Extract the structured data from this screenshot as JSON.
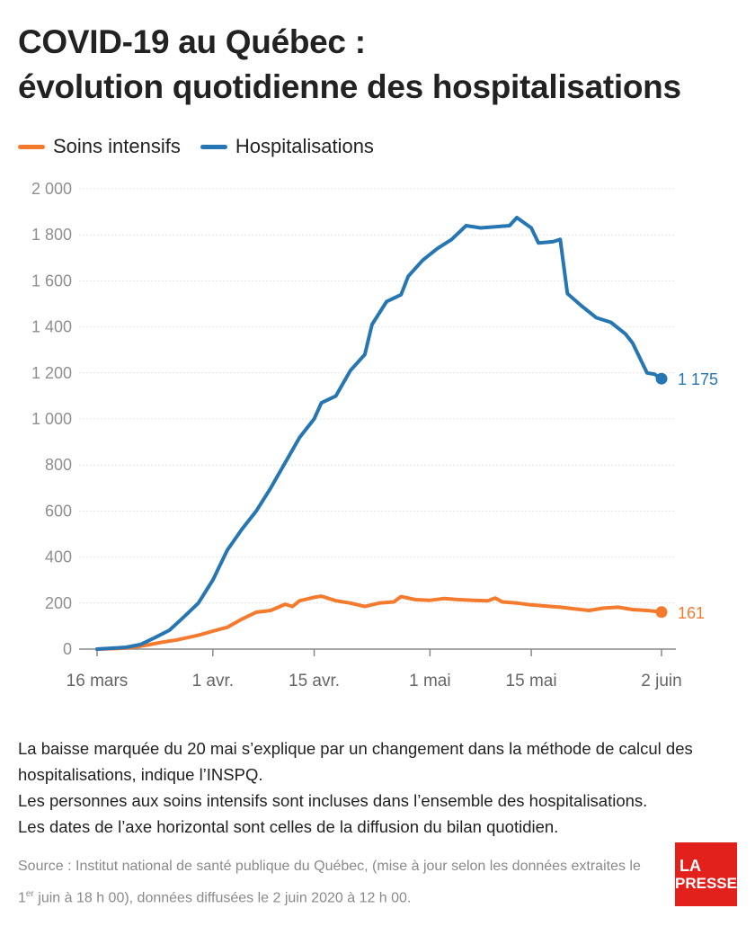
{
  "title_line1": "COVID-19 au Québec :",
  "title_line2": "évolution quotidienne des hospitalisations",
  "colors": {
    "soins": "#f47a2e",
    "hosp": "#2576b2",
    "grid": "#e3e3e3",
    "axis": "#888888",
    "tick_text": "#8f8f8f"
  },
  "chart_data": {
    "type": "line",
    "x_axis_type": "date",
    "xlim": [
      "2020-03-16",
      "2020-06-02"
    ],
    "ylim": [
      0,
      2000
    ],
    "grid": true,
    "legend_position": "top-left",
    "yticks": [
      0,
      200,
      400,
      600,
      800,
      1000,
      1200,
      1400,
      1600,
      1800,
      2000
    ],
    "ytick_labels": [
      "0",
      "200",
      "400",
      "600",
      "800",
      "1 000",
      "1 200",
      "1 400",
      "1 600",
      "1 800",
      "2 000"
    ],
    "xticks": [
      "2020-03-16",
      "2020-04-01",
      "2020-04-15",
      "2020-05-01",
      "2020-05-15",
      "2020-06-02"
    ],
    "xtick_labels": [
      "16 mars",
      "1 avr.",
      "15 avr.",
      "1 mai",
      "15 mai",
      "2 juin"
    ],
    "series": [
      {
        "name": "Soins intensifs",
        "color": "#f47a2e",
        "end_label": "161",
        "points": [
          [
            "2020-03-16",
            0
          ],
          [
            "2020-03-19",
            3
          ],
          [
            "2020-03-21",
            8
          ],
          [
            "2020-03-23",
            18
          ],
          [
            "2020-03-25",
            30
          ],
          [
            "2020-03-27",
            40
          ],
          [
            "2020-03-30",
            60
          ],
          [
            "2020-04-01",
            78
          ],
          [
            "2020-04-03",
            95
          ],
          [
            "2020-04-05",
            130
          ],
          [
            "2020-04-07",
            160
          ],
          [
            "2020-04-09",
            168
          ],
          [
            "2020-04-11",
            195
          ],
          [
            "2020-04-12",
            185
          ],
          [
            "2020-04-13",
            210
          ],
          [
            "2020-04-15",
            225
          ],
          [
            "2020-04-16",
            230
          ],
          [
            "2020-04-18",
            210
          ],
          [
            "2020-04-20",
            200
          ],
          [
            "2020-04-22",
            185
          ],
          [
            "2020-04-24",
            200
          ],
          [
            "2020-04-26",
            205
          ],
          [
            "2020-04-27",
            228
          ],
          [
            "2020-04-29",
            215
          ],
          [
            "2020-05-01",
            212
          ],
          [
            "2020-05-03",
            220
          ],
          [
            "2020-05-05",
            215
          ],
          [
            "2020-05-07",
            212
          ],
          [
            "2020-05-09",
            210
          ],
          [
            "2020-05-10",
            222
          ],
          [
            "2020-05-11",
            205
          ],
          [
            "2020-05-13",
            200
          ],
          [
            "2020-05-15",
            192
          ],
          [
            "2020-05-17",
            187
          ],
          [
            "2020-05-19",
            182
          ],
          [
            "2020-05-21",
            175
          ],
          [
            "2020-05-23",
            168
          ],
          [
            "2020-05-25",
            178
          ],
          [
            "2020-05-27",
            182
          ],
          [
            "2020-05-29",
            172
          ],
          [
            "2020-05-31",
            168
          ],
          [
            "2020-06-02",
            161
          ]
        ]
      },
      {
        "name": "Hospitalisations",
        "color": "#2576b2",
        "end_label": "1 175",
        "points": [
          [
            "2020-03-16",
            0
          ],
          [
            "2020-03-18",
            4
          ],
          [
            "2020-03-20",
            8
          ],
          [
            "2020-03-22",
            20
          ],
          [
            "2020-03-24",
            50
          ],
          [
            "2020-03-26",
            82
          ],
          [
            "2020-03-28",
            140
          ],
          [
            "2020-03-30",
            200
          ],
          [
            "2020-04-01",
            300
          ],
          [
            "2020-04-03",
            430
          ],
          [
            "2020-04-05",
            520
          ],
          [
            "2020-04-07",
            600
          ],
          [
            "2020-04-09",
            700
          ],
          [
            "2020-04-11",
            810
          ],
          [
            "2020-04-13",
            920
          ],
          [
            "2020-04-15",
            1000
          ],
          [
            "2020-04-16",
            1070
          ],
          [
            "2020-04-18",
            1100
          ],
          [
            "2020-04-20",
            1210
          ],
          [
            "2020-04-22",
            1280
          ],
          [
            "2020-04-23",
            1410
          ],
          [
            "2020-04-25",
            1510
          ],
          [
            "2020-04-27",
            1540
          ],
          [
            "2020-04-28",
            1620
          ],
          [
            "2020-04-30",
            1690
          ],
          [
            "2020-05-02",
            1740
          ],
          [
            "2020-05-04",
            1780
          ],
          [
            "2020-05-06",
            1840
          ],
          [
            "2020-05-08",
            1830
          ],
          [
            "2020-05-10",
            1835
          ],
          [
            "2020-05-12",
            1840
          ],
          [
            "2020-05-13",
            1875
          ],
          [
            "2020-05-15",
            1830
          ],
          [
            "2020-05-16",
            1765
          ],
          [
            "2020-05-18",
            1770
          ],
          [
            "2020-05-19",
            1780
          ],
          [
            "2020-05-20",
            1545
          ],
          [
            "2020-05-22",
            1490
          ],
          [
            "2020-05-24",
            1440
          ],
          [
            "2020-05-26",
            1420
          ],
          [
            "2020-05-28",
            1370
          ],
          [
            "2020-05-29",
            1330
          ],
          [
            "2020-05-31",
            1200
          ],
          [
            "2020-06-01",
            1195
          ],
          [
            "2020-06-02",
            1175
          ]
        ]
      }
    ]
  },
  "notes": [
    "La baisse marquée du 20 mai s’explique par un changement dans la méthode de calcul des hospitalisations, indique l’INSPQ.",
    "Les personnes aux soins intensifs sont incluses dans l’ensemble des hospitalisations.",
    "Les dates de l’axe horizontal sont celles de la diffusion du bilan quotidien."
  ],
  "source": {
    "part1": "Source : Institut national de santé publique du Québec, (mise à jour selon les données extraites le 1",
    "sup": "er",
    "part2": " juin à 18 h 00), données diffusées le 2 juin 2020 à 12 h 00."
  },
  "logo": {
    "line1": "LA",
    "line2": "PRESSE"
  }
}
